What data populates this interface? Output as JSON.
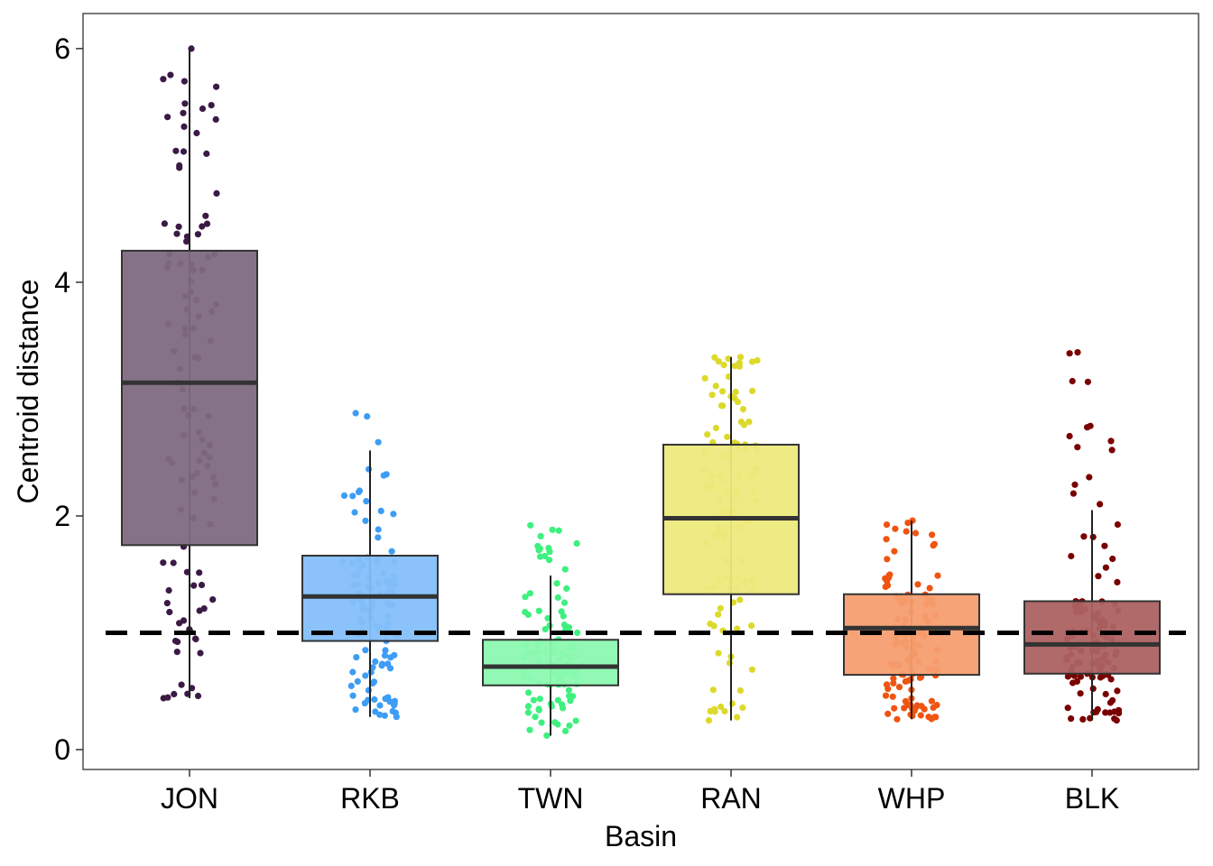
{
  "chart_data": {
    "type": "box",
    "xlabel": "Basin",
    "ylabel": "Centroid distance",
    "ylim": [
      -0.17,
      6.3
    ],
    "yticks": [
      0,
      2,
      4,
      6
    ],
    "grid": false,
    "legend": "none",
    "reference_line": {
      "y": 1.0,
      "style": "dashed",
      "color": "#000000"
    },
    "categories": [
      "JON",
      "RKB",
      "TWN",
      "RAN",
      "WHP",
      "BLK"
    ],
    "boxes": [
      {
        "name": "JON",
        "color": "#3b1a45",
        "fill": "#7f6a80",
        "whisker_low": 0.44,
        "q1": 1.75,
        "median": 3.14,
        "q3": 4.27,
        "whisker_high": 6.0,
        "n_points": 110,
        "point_min": 0.44,
        "point_max": 6.0
      },
      {
        "name": "RKB",
        "color": "#3d9df5",
        "fill": "#84bff9",
        "whisker_low": 0.28,
        "q1": 0.93,
        "median": 1.31,
        "q3": 1.66,
        "whisker_high": 2.56,
        "n_points": 110,
        "point_min": 0.28,
        "point_max": 2.88
      },
      {
        "name": "TWN",
        "color": "#3ef07f",
        "fill": "#8cf9b1",
        "whisker_low": 0.12,
        "q1": 0.55,
        "median": 0.71,
        "q3": 0.94,
        "whisker_high": 1.49,
        "n_points": 110,
        "point_min": 0.12,
        "point_max": 1.92
      },
      {
        "name": "RAN",
        "color": "#ddd92b",
        "fill": "#ede97d",
        "whisker_low": 0.25,
        "q1": 1.33,
        "median": 1.98,
        "q3": 2.61,
        "whisker_high": 3.36,
        "n_points": 110,
        "point_min": 0.25,
        "point_max": 3.36
      },
      {
        "name": "WHP",
        "color": "#ef5410",
        "fill": "#f59e70",
        "whisker_low": 0.26,
        "q1": 0.64,
        "median": 1.04,
        "q3": 1.33,
        "whisker_high": 1.96,
        "n_points": 120,
        "point_min": 0.26,
        "point_max": 1.96
      },
      {
        "name": "BLK",
        "color": "#7a0000",
        "fill": "#ad6262",
        "whisker_low": 0.25,
        "q1": 0.65,
        "median": 0.9,
        "q3": 1.27,
        "whisker_high": 2.05,
        "n_points": 120,
        "point_min": 0.25,
        "point_max": 3.4
      }
    ]
  }
}
